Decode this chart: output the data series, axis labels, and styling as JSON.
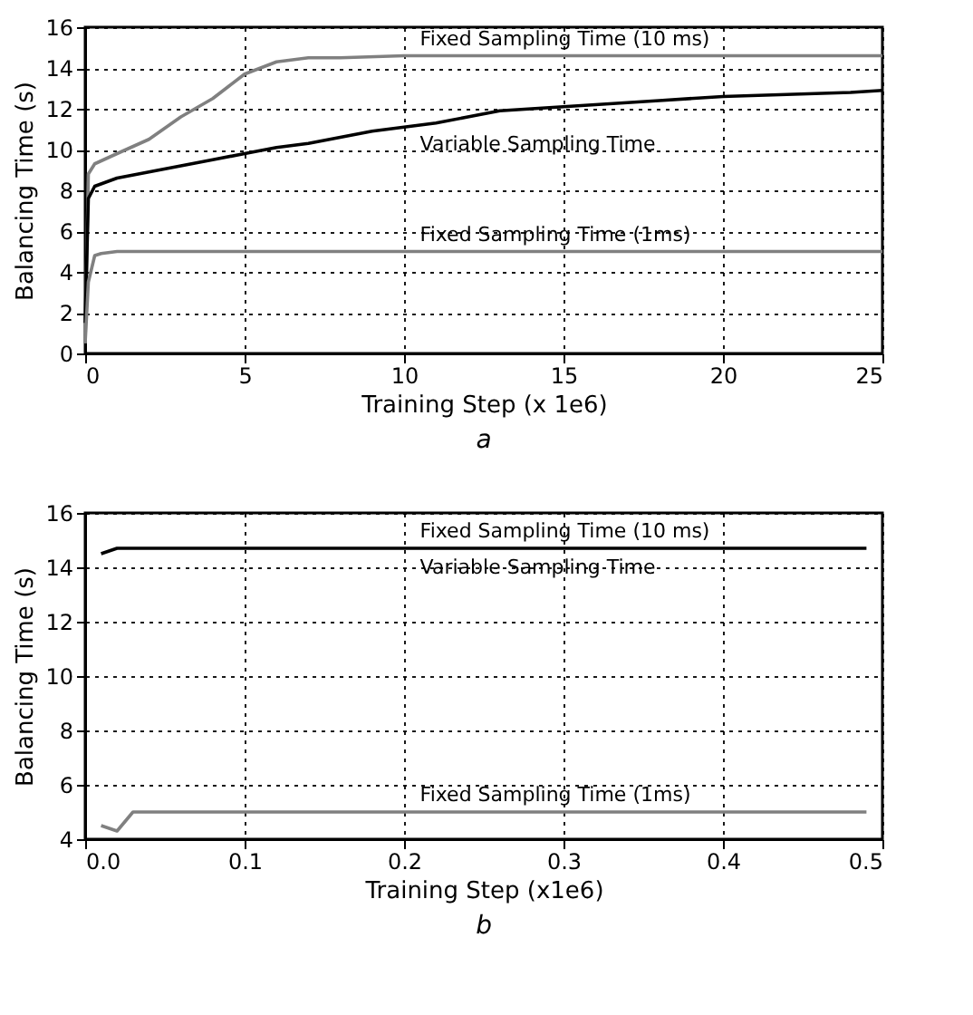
{
  "chart_data": [
    {
      "type": "line",
      "title": "a",
      "xlabel": "Training Step (x 1e6)",
      "ylabel": "Balancing Time (s)",
      "xlim": [
        0,
        25
      ],
      "ylim": [
        0,
        16
      ],
      "xticks": [
        0,
        5,
        10,
        15,
        20,
        25
      ],
      "yticks": [
        0,
        2,
        4,
        6,
        8,
        10,
        12,
        14,
        16
      ],
      "grid": true,
      "line_style": "solid",
      "marker": "none",
      "series": [
        {
          "name": "Fixed Sampling Time (10 ms)",
          "color": "#808080",
          "x": [
            0,
            0.1,
            0.3,
            1,
            2,
            3,
            4,
            4.5,
            5,
            5.5,
            6,
            6.5,
            7,
            8,
            10,
            12,
            15,
            18,
            20,
            22,
            25
          ],
          "values": [
            0.5,
            8.8,
            9.3,
            9.8,
            10.5,
            11.6,
            12.5,
            13.1,
            13.7,
            14.0,
            14.3,
            14.4,
            14.5,
            14.5,
            14.6,
            14.6,
            14.6,
            14.6,
            14.6,
            14.6,
            14.6
          ]
        },
        {
          "name": "Variable Sampling Time",
          "color": "#000000",
          "x": [
            0,
            0.1,
            0.3,
            1,
            2,
            3,
            4,
            5,
            6,
            7,
            8,
            9,
            10,
            11,
            12,
            13,
            14,
            15,
            16,
            17,
            18,
            20,
            22,
            24,
            25
          ],
          "values": [
            1.5,
            7.6,
            8.2,
            8.6,
            8.9,
            9.2,
            9.5,
            9.8,
            10.1,
            10.3,
            10.6,
            10.9,
            11.1,
            11.3,
            11.6,
            11.9,
            12.0,
            12.1,
            12.2,
            12.3,
            12.4,
            12.6,
            12.7,
            12.8,
            12.9
          ]
        },
        {
          "name": "Fixed Sampling Time (1ms)",
          "color": "#808080",
          "x": [
            0,
            0.1,
            0.3,
            0.5,
            1,
            5,
            10,
            15,
            20,
            25
          ],
          "values": [
            0.5,
            3.5,
            4.8,
            4.9,
            5.0,
            5.0,
            5.0,
            5.0,
            5.0,
            5.0
          ]
        }
      ]
    },
    {
      "type": "line",
      "title": "b",
      "xlabel": "Training Step (x1e6)",
      "ylabel": "Balancing Time (s)",
      "xlim": [
        0,
        0.5
      ],
      "ylim": [
        4,
        16
      ],
      "xticks": [
        {
          "value": 0,
          "label": "0.0"
        },
        0.1,
        0.2,
        0.3,
        0.4,
        0.5
      ],
      "yticks": [
        4,
        6,
        8,
        10,
        12,
        14,
        16
      ],
      "grid": true,
      "line_style": "solid",
      "marker": "none",
      "series": [
        {
          "name": "Variable Sampling Time",
          "color": "#000000",
          "x": [
            0.01,
            0.02,
            0.03,
            0.1,
            0.2,
            0.3,
            0.4,
            0.49
          ],
          "values": [
            14.5,
            14.7,
            14.7,
            14.7,
            14.7,
            14.7,
            14.7,
            14.7
          ]
        },
        {
          "name": "Fixed Sampling Time (1ms)",
          "color": "#808080",
          "x": [
            0.01,
            0.02,
            0.03,
            0.1,
            0.2,
            0.3,
            0.4,
            0.49
          ],
          "values": [
            4.5,
            4.3,
            5.0,
            5.0,
            5.0,
            5.0,
            5.0,
            5.0
          ]
        }
      ],
      "annotations": [
        "Fixed Sampling Time (10 ms)"
      ]
    }
  ]
}
